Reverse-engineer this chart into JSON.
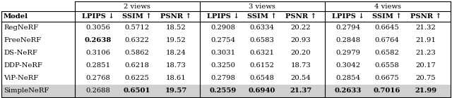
{
  "col_group_labels": [
    "2 views",
    "3 views",
    "4 views"
  ],
  "metric_labels": [
    "LPIPS ↓",
    "SSIM ↑",
    "PSNR ↑"
  ],
  "models": [
    "RegNeRF",
    "FreeNeRF",
    "DS-NeRF",
    "DDP-NeRF",
    "ViP-NeRF",
    "SimpleNeRF"
  ],
  "data": {
    "2views": {
      "LPIPS": [
        0.3056,
        0.2638,
        0.3106,
        0.2851,
        0.2768,
        0.2688
      ],
      "SSIM": [
        0.5712,
        0.6322,
        0.5862,
        0.6218,
        0.6225,
        0.6501
      ],
      "PSNR": [
        18.52,
        19.52,
        18.24,
        18.73,
        18.61,
        19.57
      ]
    },
    "3views": {
      "LPIPS": [
        0.2908,
        0.2754,
        0.3031,
        0.325,
        0.2798,
        0.2559
      ],
      "SSIM": [
        0.6334,
        0.6583,
        0.6321,
        0.6152,
        0.6548,
        0.694
      ],
      "PSNR": [
        20.22,
        20.93,
        20.2,
        18.73,
        20.54,
        21.37
      ]
    },
    "4views": {
      "LPIPS": [
        0.2794,
        0.2848,
        0.2979,
        0.3042,
        0.2854,
        0.2633
      ],
      "SSIM": [
        0.6645,
        0.6764,
        0.6582,
        0.6558,
        0.6675,
        0.7016
      ],
      "PSNR": [
        21.32,
        21.91,
        21.23,
        20.17,
        20.75,
        21.99
      ]
    }
  },
  "bold": {
    "2views": {
      "LPIPS": [
        1
      ],
      "SSIM": [
        5
      ],
      "PSNR": [
        5
      ]
    },
    "3views": {
      "LPIPS": [
        5
      ],
      "SSIM": [
        5
      ],
      "PSNR": [
        5
      ]
    },
    "4views": {
      "LPIPS": [
        5
      ],
      "SSIM": [
        5
      ],
      "PSNR": [
        5
      ]
    }
  },
  "last_row_bg": "#d0d0d0",
  "font_size": 7.2,
  "fig_width": 6.4,
  "fig_height": 1.4,
  "dpi": 100
}
